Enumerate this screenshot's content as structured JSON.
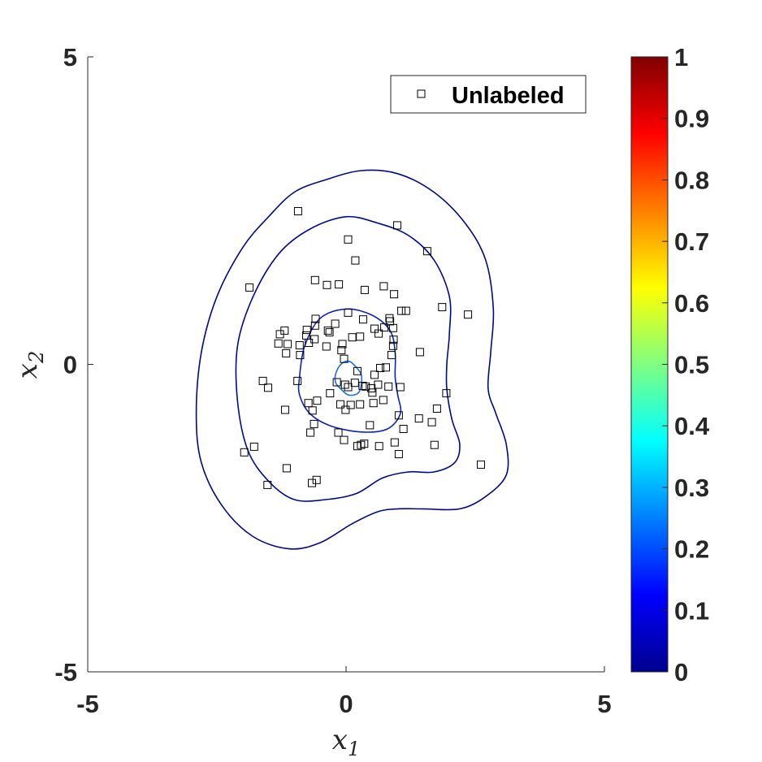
{
  "chart_data": {
    "type": "scatter",
    "title": "",
    "xlabel": "x",
    "xlabel_sub": "1",
    "ylabel": "x",
    "ylabel_sub": "2",
    "xlim": [
      -5,
      5
    ],
    "ylim": [
      -5,
      5
    ],
    "x_ticks": [
      {
        "value": -5,
        "label": "-5"
      },
      {
        "value": 0,
        "label": "0"
      },
      {
        "value": 5,
        "label": "5"
      }
    ],
    "y_ticks": [
      {
        "value": -5,
        "label": "-5"
      },
      {
        "value": 0,
        "label": "0"
      },
      {
        "value": 5,
        "label": "5"
      }
    ],
    "grid": false,
    "legend": {
      "placement": "top-right",
      "entries": [
        {
          "label": "Unlabeled",
          "marker": "square"
        }
      ]
    },
    "series": [
      {
        "name": "Unlabeled",
        "marker": "square",
        "color": "#000000",
        "points": [
          [
            -0.93,
            2.49
          ],
          [
            0.99,
            2.26
          ],
          [
            0.04,
            2.03
          ],
          [
            1.57,
            1.84
          ],
          [
            0.18,
            1.69
          ],
          [
            -1.87,
            1.25
          ],
          [
            -0.6,
            1.37
          ],
          [
            -0.37,
            1.29
          ],
          [
            -0.14,
            1.3
          ],
          [
            0.36,
            1.21
          ],
          [
            0.73,
            1.27
          ],
          [
            0.93,
            1.14
          ],
          [
            1.86,
            0.93
          ],
          [
            2.36,
            0.81
          ],
          [
            1.07,
            0.87
          ],
          [
            1.16,
            0.87
          ],
          [
            0.04,
            0.84
          ],
          [
            0.84,
            0.75
          ],
          [
            0.85,
            0.7
          ],
          [
            0.33,
            0.73
          ],
          [
            -0.59,
            0.74
          ],
          [
            -0.21,
            0.66
          ],
          [
            -0.6,
            0.63
          ],
          [
            0.74,
            0.6
          ],
          [
            0.91,
            0.59
          ],
          [
            0.55,
            0.58
          ],
          [
            -0.76,
            0.56
          ],
          [
            -1.19,
            0.55
          ],
          [
            -1.28,
            0.49
          ],
          [
            -0.77,
            0.47
          ],
          [
            0.63,
            0.5
          ],
          [
            -0.35,
            0.55
          ],
          [
            -0.32,
            0.52
          ],
          [
            0.27,
            0.45
          ],
          [
            -0.61,
            0.41
          ],
          [
            0.92,
            0.4
          ],
          [
            -1.31,
            0.34
          ],
          [
            -1.13,
            0.33
          ],
          [
            -0.9,
            0.31
          ],
          [
            -0.38,
            0.29
          ],
          [
            -0.72,
            0.35
          ],
          [
            -0.07,
            0.33
          ],
          [
            0.12,
            0.44
          ],
          [
            0.91,
            0.3
          ],
          [
            -0.09,
            0.23
          ],
          [
            -1.16,
            0.18
          ],
          [
            -0.89,
            0.15
          ],
          [
            0.88,
            0.15
          ],
          [
            1.43,
            0.2
          ],
          [
            -0.04,
            0.09
          ],
          [
            0.66,
            -0.06
          ],
          [
            0.77,
            -0.05
          ],
          [
            0.55,
            -0.17
          ],
          [
            0.22,
            -0.11
          ],
          [
            -0.18,
            -0.29
          ],
          [
            -0.02,
            -0.33
          ],
          [
            0.17,
            -0.3
          ],
          [
            -1.61,
            -0.27
          ],
          [
            -0.94,
            -0.27
          ],
          [
            -1.51,
            -0.38
          ],
          [
            0.04,
            -0.37
          ],
          [
            0.32,
            -0.35
          ],
          [
            0.38,
            -0.36
          ],
          [
            0.62,
            -0.33
          ],
          [
            0.49,
            -0.39
          ],
          [
            0.82,
            -0.36
          ],
          [
            0.51,
            -0.46
          ],
          [
            -0.31,
            -0.47
          ],
          [
            1.05,
            -0.37
          ],
          [
            1.94,
            -0.47
          ],
          [
            -0.11,
            -0.65
          ],
          [
            0.09,
            -0.66
          ],
          [
            0.27,
            -0.65
          ],
          [
            0.53,
            -0.63
          ],
          [
            0.72,
            -0.58
          ],
          [
            -0.73,
            -0.63
          ],
          [
            -0.56,
            -0.59
          ],
          [
            -1.18,
            -0.74
          ],
          [
            -0.65,
            -0.75
          ],
          [
            1.76,
            -0.72
          ],
          [
            -0.01,
            -0.74
          ],
          [
            1.02,
            -0.83
          ],
          [
            1.41,
            -0.88
          ],
          [
            -0.62,
            -0.97
          ],
          [
            1.66,
            -0.94
          ],
          [
            0.46,
            -0.99
          ],
          [
            1.11,
            -1.05
          ],
          [
            -0.15,
            -1.11
          ],
          [
            -0.69,
            -1.11
          ],
          [
            -0.04,
            -1.23
          ],
          [
            0.35,
            -1.29
          ],
          [
            0.22,
            -1.33
          ],
          [
            0.29,
            -1.31
          ],
          [
            0.64,
            -1.33
          ],
          [
            0.94,
            -1.27
          ],
          [
            1.71,
            -1.31
          ],
          [
            -1.78,
            -1.34
          ],
          [
            -1.97,
            -1.43
          ],
          [
            1.02,
            -1.46
          ],
          [
            -1.15,
            -1.69
          ],
          [
            2.61,
            -1.63
          ],
          [
            -0.57,
            -1.88
          ],
          [
            -1.52,
            -1.96
          ],
          [
            -0.66,
            -1.93
          ]
        ]
      }
    ],
    "contours": [
      {
        "level": 0.01,
        "color": "#000a87",
        "points": [
          [
            -2.9,
            -0.8
          ],
          [
            -2.8,
            0.2
          ],
          [
            -2.5,
            1.1
          ],
          [
            -2.0,
            1.9
          ],
          [
            -1.5,
            2.4
          ],
          [
            -1.0,
            2.8
          ],
          [
            -0.4,
            3.0
          ],
          [
            0.3,
            3.15
          ],
          [
            1.0,
            3.1
          ],
          [
            1.7,
            2.8
          ],
          [
            2.3,
            2.3
          ],
          [
            2.7,
            1.7
          ],
          [
            2.85,
            0.9
          ],
          [
            2.8,
            0.2
          ],
          [
            2.75,
            -0.4
          ],
          [
            2.9,
            -0.8
          ],
          [
            3.1,
            -1.3
          ],
          [
            3.1,
            -1.8
          ],
          [
            2.7,
            -2.15
          ],
          [
            2.2,
            -2.35
          ],
          [
            1.5,
            -2.35
          ],
          [
            1.0,
            -2.35
          ],
          [
            0.6,
            -2.4
          ],
          [
            0.1,
            -2.6
          ],
          [
            -0.5,
            -2.9
          ],
          [
            -1.1,
            -3.0
          ],
          [
            -1.8,
            -2.8
          ],
          [
            -2.4,
            -2.3
          ],
          [
            -2.8,
            -1.6
          ]
        ]
      },
      {
        "level": 0.04,
        "color": "#000a90",
        "points": [
          [
            -2.1,
            -0.6
          ],
          [
            -2.1,
            0.3
          ],
          [
            -1.8,
            1.1
          ],
          [
            -1.3,
            1.8
          ],
          [
            -0.7,
            2.2
          ],
          [
            0.0,
            2.4
          ],
          [
            0.6,
            2.3
          ],
          [
            1.2,
            2.1
          ],
          [
            1.7,
            1.7
          ],
          [
            2.0,
            1.1
          ],
          [
            2.0,
            0.5
          ],
          [
            1.95,
            0.0
          ],
          [
            1.95,
            -0.4
          ],
          [
            2.05,
            -0.9
          ],
          [
            2.2,
            -1.3
          ],
          [
            2.1,
            -1.6
          ],
          [
            1.7,
            -1.75
          ],
          [
            1.2,
            -1.75
          ],
          [
            0.7,
            -1.85
          ],
          [
            0.2,
            -2.1
          ],
          [
            -0.4,
            -2.2
          ],
          [
            -1.0,
            -2.2
          ],
          [
            -1.5,
            -1.9
          ],
          [
            -1.9,
            -1.4
          ]
        ]
      },
      {
        "level": 0.1,
        "color": "#0a22c0",
        "points": [
          [
            -0.9,
            -0.2
          ],
          [
            -0.8,
            0.3
          ],
          [
            -0.5,
            0.75
          ],
          [
            0.0,
            0.9
          ],
          [
            0.5,
            0.8
          ],
          [
            0.85,
            0.55
          ],
          [
            0.95,
            0.2
          ],
          [
            0.95,
            -0.2
          ],
          [
            1.0,
            -0.5
          ],
          [
            1.05,
            -0.8
          ],
          [
            0.8,
            -1.05
          ],
          [
            0.3,
            -1.1
          ],
          [
            -0.3,
            -1.0
          ],
          [
            -0.7,
            -0.8
          ],
          [
            -0.9,
            -0.5
          ]
        ]
      },
      {
        "level": 0.2,
        "color": "#1a6ee8",
        "points": [
          [
            -0.2,
            -0.15
          ],
          [
            -0.1,
            0.0
          ],
          [
            0.05,
            0.05
          ],
          [
            0.2,
            -0.05
          ],
          [
            0.3,
            -0.2
          ],
          [
            0.25,
            -0.45
          ],
          [
            0.05,
            -0.5
          ],
          [
            -0.1,
            -0.4
          ],
          [
            -0.2,
            -0.3
          ]
        ]
      }
    ],
    "colorbar": {
      "colormap": "jet",
      "range": [
        0,
        1
      ],
      "ticks": [
        {
          "value": 0,
          "label": "0"
        },
        {
          "value": 0.1,
          "label": "0.1"
        },
        {
          "value": 0.2,
          "label": "0.2"
        },
        {
          "value": 0.3,
          "label": "0.3"
        },
        {
          "value": 0.4,
          "label": "0.4"
        },
        {
          "value": 0.5,
          "label": "0.5"
        },
        {
          "value": 0.6,
          "label": "0.6"
        },
        {
          "value": 0.7,
          "label": "0.7"
        },
        {
          "value": 0.8,
          "label": "0.8"
        },
        {
          "value": 0.9,
          "label": "0.9"
        },
        {
          "value": 1,
          "label": "1"
        }
      ]
    }
  }
}
